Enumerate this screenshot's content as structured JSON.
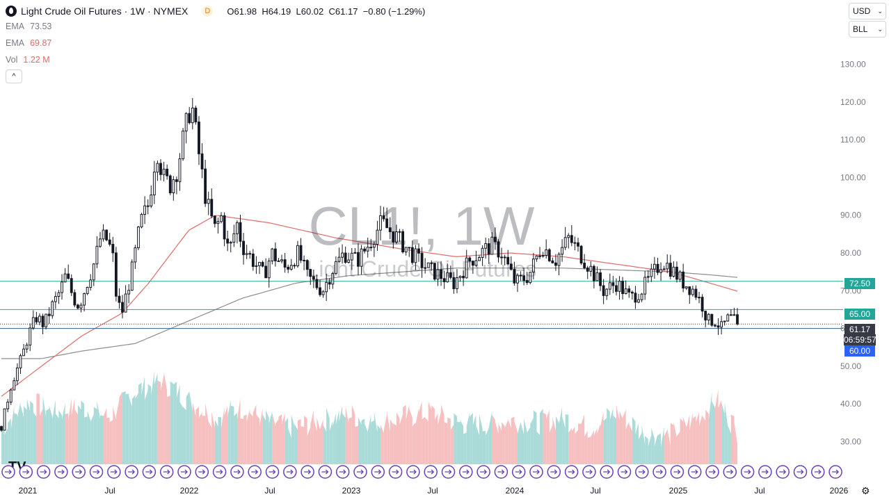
{
  "header": {
    "title": "Light Crude Oil Futures · 1W · NYMEX",
    "badge": "D",
    "ohlc": {
      "o_label": "O",
      "o": "61.98",
      "h_label": "H",
      "h": "64.19",
      "l_label": "L",
      "l": "60.02",
      "c_label": "C",
      "c": "61.17",
      "change": "−0.80 (−1.29%)"
    }
  },
  "indicators": [
    {
      "name": "EMA",
      "value": "73.53"
    },
    {
      "name": "EMA",
      "value": "69.87"
    },
    {
      "name": "Vol",
      "value": "1.22 M"
    }
  ],
  "collapse_glyph": "^",
  "watermark": {
    "symbol": "CL1!, 1W",
    "name": "Light Crude Oil Futures"
  },
  "selectors": {
    "currency": "USD",
    "unit": "BLL"
  },
  "price_tags": {
    "level_72": "72.50",
    "level_65": "65.00",
    "last": "61.17",
    "countdown": "06:59:57",
    "level_60": "60.00"
  },
  "colors": {
    "up": "#131722",
    "down": "#131722",
    "ema_fast": "#e06a6a",
    "ema_slow": "#8c8c8c",
    "hline": "#26a69a",
    "tag_teal": "#22a69a",
    "tag_blue": "#2962ff",
    "tag_last": "#363a45",
    "vol_up": "#9bd5d1",
    "vol_down": "#f5b5b5"
  },
  "chart_data": {
    "type": "candlestick",
    "title": "Light Crude Oil Futures · 1W · NYMEX",
    "y_ticks": [
      "130.00",
      "120.00",
      "110.00",
      "100.00",
      "90.00",
      "80.00",
      "70.00",
      "60.00",
      "50.00",
      "40.00",
      "30.00"
    ],
    "y_tick_values": [
      130,
      120,
      110,
      100,
      90,
      80,
      70,
      60,
      50,
      40,
      30
    ],
    "x_ticks": [
      "2021",
      "Jul",
      "2022",
      "Jul",
      "2023",
      "Jul",
      "2024",
      "Jul",
      "2025",
      "Jul",
      "2026"
    ],
    "ylim": [
      24,
      136
    ],
    "horizontal_levels": [
      72.5,
      65.0,
      60.0
    ],
    "last_price": 61.17,
    "price_anchors": [
      [
        0,
        34
      ],
      [
        8,
        46
      ],
      [
        15,
        52
      ],
      [
        20,
        58
      ],
      [
        26,
        63
      ],
      [
        32,
        61
      ],
      [
        38,
        66
      ],
      [
        44,
        70
      ],
      [
        48,
        74
      ],
      [
        54,
        68
      ],
      [
        58,
        66
      ],
      [
        64,
        72
      ],
      [
        70,
        78
      ],
      [
        74,
        84
      ],
      [
        78,
        84
      ],
      [
        83,
        80
      ],
      [
        86,
        68
      ],
      [
        90,
        64
      ],
      [
        94,
        70
      ],
      [
        98,
        76
      ],
      [
        104,
        88
      ],
      [
        110,
        93
      ],
      [
        116,
        108
      ],
      [
        121,
        100
      ],
      [
        126,
        98
      ],
      [
        131,
        102
      ],
      [
        137,
        112
      ],
      [
        142,
        120
      ],
      [
        146,
        110
      ],
      [
        152,
        96
      ],
      [
        156,
        90
      ],
      [
        160,
        86
      ],
      [
        164,
        90
      ],
      [
        170,
        80
      ],
      [
        176,
        88
      ],
      [
        180,
        82
      ],
      [
        188,
        78
      ],
      [
        196,
        74
      ],
      [
        202,
        80
      ],
      [
        212,
        76
      ],
      [
        222,
        80
      ],
      [
        228,
        74
      ],
      [
        240,
        70
      ],
      [
        248,
        76
      ],
      [
        256,
        80
      ],
      [
        266,
        78
      ],
      [
        274,
        82
      ],
      [
        284,
        88
      ],
      [
        296,
        84
      ],
      [
        306,
        80
      ],
      [
        318,
        76
      ],
      [
        328,
        74
      ],
      [
        338,
        72
      ],
      [
        350,
        78
      ],
      [
        358,
        80
      ],
      [
        366,
        82
      ],
      [
        374,
        80
      ],
      [
        384,
        72
      ],
      [
        394,
        74
      ],
      [
        404,
        82
      ],
      [
        414,
        78
      ],
      [
        424,
        84
      ],
      [
        432,
        80
      ],
      [
        440,
        76
      ],
      [
        450,
        70
      ],
      [
        460,
        72
      ],
      [
        470,
        68
      ],
      [
        478,
        70
      ],
      [
        486,
        74
      ],
      [
        494,
        78
      ],
      [
        500,
        76
      ],
      [
        510,
        72
      ],
      [
        518,
        70
      ],
      [
        524,
        66
      ],
      [
        528,
        62
      ],
      [
        534,
        62
      ],
      [
        538,
        60
      ],
      [
        544,
        63
      ],
      [
        550,
        61.17
      ]
    ],
    "ema_fast_anchors": [
      [
        0,
        42
      ],
      [
        30,
        50
      ],
      [
        60,
        58
      ],
      [
        90,
        64
      ],
      [
        110,
        72
      ],
      [
        140,
        86
      ],
      [
        160,
        90
      ],
      [
        200,
        88
      ],
      [
        250,
        84
      ],
      [
        300,
        81
      ],
      [
        340,
        79
      ],
      [
        380,
        80
      ],
      [
        420,
        79
      ],
      [
        460,
        77
      ],
      [
        500,
        75
      ],
      [
        520,
        73
      ],
      [
        550,
        69.87
      ]
    ],
    "ema_slow_anchors": [
      [
        0,
        52
      ],
      [
        30,
        52
      ],
      [
        60,
        54
      ],
      [
        100,
        56
      ],
      [
        140,
        62
      ],
      [
        180,
        68
      ],
      [
        220,
        72
      ],
      [
        260,
        74
      ],
      [
        300,
        75
      ],
      [
        340,
        76
      ],
      [
        380,
        76
      ],
      [
        420,
        76
      ],
      [
        460,
        75.5
      ],
      [
        500,
        75
      ],
      [
        530,
        74.2
      ],
      [
        550,
        73.53
      ]
    ],
    "volume_anchors": [
      [
        0,
        0.35
      ],
      [
        20,
        0.6
      ],
      [
        40,
        0.5
      ],
      [
        60,
        0.55
      ],
      [
        80,
        0.45
      ],
      [
        100,
        0.7
      ],
      [
        120,
        0.8
      ],
      [
        140,
        0.62
      ],
      [
        160,
        0.45
      ],
      [
        180,
        0.55
      ],
      [
        200,
        0.4
      ],
      [
        220,
        0.35
      ],
      [
        240,
        0.42
      ],
      [
        260,
        0.48
      ],
      [
        280,
        0.4
      ],
      [
        300,
        0.45
      ],
      [
        320,
        0.5
      ],
      [
        340,
        0.4
      ],
      [
        360,
        0.38
      ],
      [
        380,
        0.42
      ],
      [
        400,
        0.4
      ],
      [
        420,
        0.44
      ],
      [
        440,
        0.35
      ],
      [
        460,
        0.5
      ],
      [
        480,
        0.3
      ],
      [
        500,
        0.28
      ],
      [
        520,
        0.45
      ],
      [
        535,
        0.62
      ],
      [
        550,
        0.32
      ]
    ],
    "candle_count": 232,
    "events_rows": 1
  }
}
